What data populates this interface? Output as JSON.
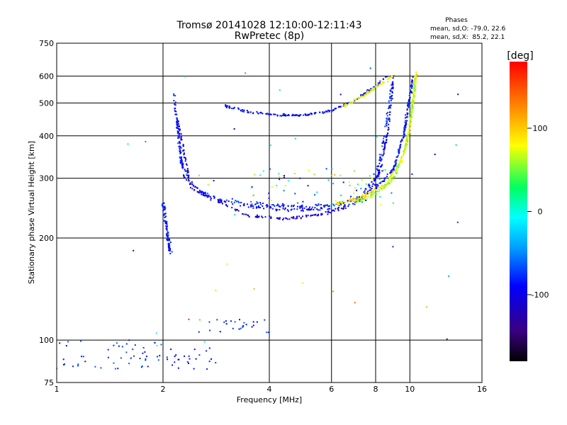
{
  "chart_data": {
    "type": "scatter",
    "title": "Tromsø 20141028 12:10:00-12:11:43",
    "subtitle": "RwPretec (8p)",
    "xlabel": "Frequency [MHz]",
    "ylabel": "Stationary phase Virtual Height [km]",
    "x_scale": "log",
    "y_scale": "log",
    "xlim": [
      1,
      16
    ],
    "ylim": [
      75,
      750
    ],
    "x_ticks": [
      1,
      2,
      4,
      6,
      8,
      10,
      16
    ],
    "x_tick_labels": [
      "1",
      "2",
      "4",
      "6",
      "8",
      "10",
      "16"
    ],
    "y_ticks": [
      75,
      100,
      200,
      300,
      400,
      500,
      600,
      750
    ],
    "y_tick_labels": [
      "75",
      "100",
      "200",
      "300",
      "400",
      "500",
      "600",
      "750"
    ],
    "grid": true,
    "phase_info": {
      "title": "Phases",
      "line_o": "mean, sd,O: -79.0, 22.6",
      "line_x": "mean, sd,X:  85.2, 22.1"
    },
    "colorbar": {
      "label": "[deg]",
      "range": [
        -180,
        180
      ],
      "ticks": [
        100,
        0,
        -100
      ],
      "tick_labels": [
        "100",
        "0",
        "-100"
      ],
      "colormap": [
        "#000000",
        "#3a0080",
        "#0000ff",
        "#00a0ff",
        "#00ffff",
        "#00ff60",
        "#ffff00",
        "#ff8000",
        "#ff0000"
      ]
    },
    "traces": [
      {
        "kind": "curve",
        "points": [
          [
            2.15,
            540
          ],
          [
            2.25,
            330
          ],
          [
            2.5,
            275
          ],
          [
            3,
            258
          ],
          [
            4,
            250
          ],
          [
            5,
            248
          ],
          [
            6,
            250
          ],
          [
            7,
            258
          ],
          [
            8,
            300
          ],
          [
            8.5,
            400
          ],
          [
            8.9,
            580
          ]
        ],
        "n": 260,
        "spread": 0.018,
        "phase": [
          -100,
          -60
        ]
      },
      {
        "kind": "curve",
        "points": [
          [
            2.15,
            500
          ],
          [
            2.3,
            300
          ],
          [
            2.7,
            262
          ],
          [
            3.5,
            248
          ],
          [
            4.5,
            242
          ],
          [
            6,
            244
          ],
          [
            7,
            252
          ],
          [
            8,
            285
          ],
          [
            8.7,
            420
          ],
          [
            9,
            600
          ]
        ],
        "n": 220,
        "spread": 0.016,
        "phase": [
          -110,
          -80
        ]
      },
      {
        "kind": "curve",
        "points": [
          [
            2.2,
            450
          ],
          [
            2.4,
            280
          ],
          [
            3,
            250
          ],
          [
            3.5,
            232
          ],
          [
            4.5,
            228
          ],
          [
            5.5,
            234
          ],
          [
            6.5,
            245
          ],
          [
            7.5,
            265
          ],
          [
            8.2,
            310
          ],
          [
            8.7,
            420
          ]
        ],
        "n": 220,
        "spread": 0.015,
        "phase": [
          -120,
          -95
        ]
      },
      {
        "kind": "curve",
        "points": [
          [
            6.2,
            252
          ],
          [
            7.2,
            262
          ],
          [
            8.5,
            285
          ],
          [
            9.5,
            340
          ],
          [
            10,
            420
          ],
          [
            10.3,
            560
          ],
          [
            10.5,
            620
          ]
        ],
        "n": 240,
        "spread": 0.02,
        "phase": [
          70,
          110
        ]
      },
      {
        "kind": "curve",
        "points": [
          [
            7,
            255
          ],
          [
            8,
            270
          ],
          [
            9,
            300
          ],
          [
            9.8,
            380
          ],
          [
            10.2,
            500
          ],
          [
            10.4,
            600
          ]
        ],
        "n": 180,
        "spread": 0.018,
        "phase": [
          40,
          80
        ]
      },
      {
        "kind": "curve",
        "points": [
          [
            8,
            280
          ],
          [
            9,
            320
          ],
          [
            9.6,
            400
          ],
          [
            10,
            520
          ],
          [
            10.2,
            600
          ]
        ],
        "n": 150,
        "spread": 0.02,
        "phase": [
          -100,
          -70
        ]
      },
      {
        "kind": "curve",
        "points": [
          [
            3,
            490
          ],
          [
            3.5,
            470
          ],
          [
            4,
            462
          ],
          [
            5,
            460
          ],
          [
            6,
            475
          ],
          [
            7,
            510
          ],
          [
            8,
            560
          ],
          [
            8.6,
            600
          ]
        ],
        "n": 190,
        "spread": 0.012,
        "phase": [
          -110,
          -70
        ]
      },
      {
        "kind": "curve",
        "points": [
          [
            6.5,
            490
          ],
          [
            7.5,
            530
          ],
          [
            8.5,
            580
          ],
          [
            9,
            600
          ]
        ],
        "n": 80,
        "spread": 0.014,
        "phase": [
          60,
          100
        ]
      },
      {
        "kind": "curve",
        "points": [
          [
            2,
            250
          ],
          [
            2.05,
            210
          ],
          [
            2.1,
            180
          ]
        ],
        "n": 90,
        "spread": 0.03,
        "phase": [
          -100,
          -70
        ]
      },
      {
        "kind": "blob",
        "x": [
          1.0,
          2.0
        ],
        "y": [
          82,
          100
        ],
        "n": 50,
        "phase": [
          -90,
          -60
        ]
      },
      {
        "kind": "blob",
        "x": [
          2.0,
          2.9
        ],
        "y": [
          82,
          95
        ],
        "n": 25,
        "phase": [
          -100,
          -70
        ]
      },
      {
        "kind": "blob",
        "x": [
          2.5,
          4.0
        ],
        "y": [
          105,
          115
        ],
        "n": 25,
        "phase": [
          -100,
          -60
        ]
      },
      {
        "kind": "blob",
        "x": [
          3.5,
          9.0
        ],
        "y": [
          250,
          320
        ],
        "n": 70,
        "phase": [
          -120,
          130
        ]
      },
      {
        "kind": "blob",
        "x": [
          1.5,
          14.5
        ],
        "y": [
          85,
          650
        ],
        "n": 40,
        "phase": [
          -140,
          170
        ]
      }
    ]
  }
}
